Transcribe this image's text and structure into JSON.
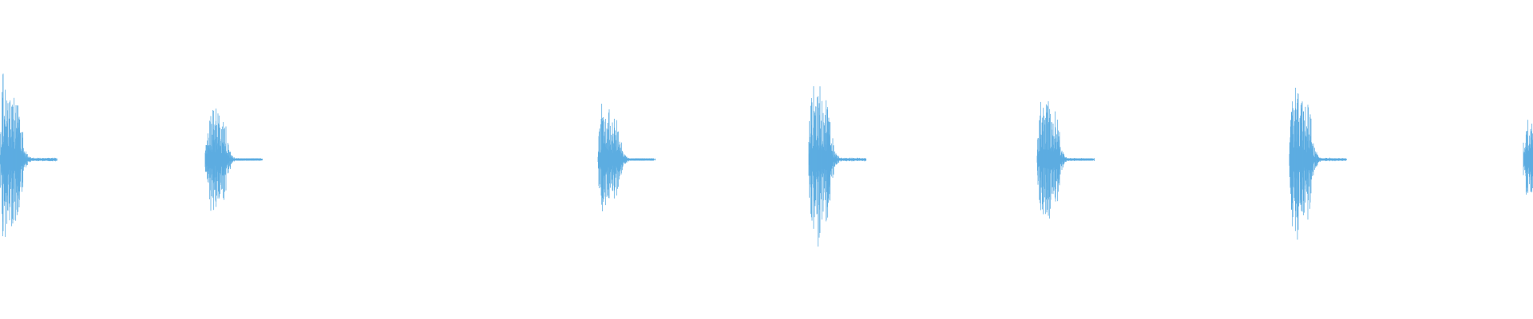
{
  "waveform": {
    "color": "#5DADE2",
    "background": "#FFFFFF",
    "bursts": [
      {
        "peak_amplitude": 0.62
      },
      {
        "peak_amplitude": 0.43
      },
      {
        "peak_amplitude": 0.42
      },
      {
        "peak_amplitude": 0.63
      },
      {
        "peak_amplitude": 0.5
      },
      {
        "peak_amplitude": 0.6
      },
      {
        "peak_amplitude": 0.36
      }
    ]
  }
}
